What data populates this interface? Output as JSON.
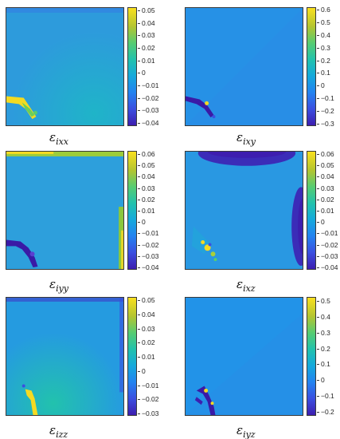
{
  "panels": [
    {
      "label": "εixx",
      "ticks": [
        "0.05",
        "0.04",
        "0.03",
        "0.02",
        "0.01",
        "0",
        "−0.01",
        "−0.02",
        "−0.03",
        "−0.04"
      ],
      "base_color": "#2d9bdc"
    },
    {
      "label": "εixy",
      "ticks": [
        "0.6",
        "0.5",
        "0.4",
        "0.3",
        "0.2",
        "0.1",
        "0",
        "−0.1",
        "−0.2",
        "−0.3"
      ],
      "base_color": "#2691e6"
    },
    {
      "label": "εiyy",
      "ticks": [
        "0.06",
        "0.05",
        "0.04",
        "0.03",
        "0.02",
        "0.01",
        "0",
        "−0.01",
        "−0.02",
        "−0.03",
        "−0.04"
      ],
      "base_color": "#2d9fdc"
    },
    {
      "label": "εixz",
      "ticks": [
        "0.06",
        "0.05",
        "0.04",
        "0.03",
        "0.02",
        "0.01",
        "0",
        "−0.01",
        "−0.02",
        "−0.03",
        "−0.04"
      ],
      "base_color": "#2998e2"
    },
    {
      "label": "εizz",
      "ticks": [
        "0.05",
        "0.04",
        "0.03",
        "0.02",
        "0.01",
        "0",
        "−0.01",
        "−0.02",
        "−0.03"
      ],
      "base_color": "#259be0"
    },
    {
      "label": "εiyz",
      "ticks": [
        "0.5",
        "0.4",
        "0.3",
        "0.2",
        "0.1",
        "0",
        "−0.1",
        "−0.2"
      ],
      "base_color": "#2293e8"
    }
  ],
  "colormap": {
    "low": "#3d1eaf",
    "high": "#f9e01e"
  }
}
